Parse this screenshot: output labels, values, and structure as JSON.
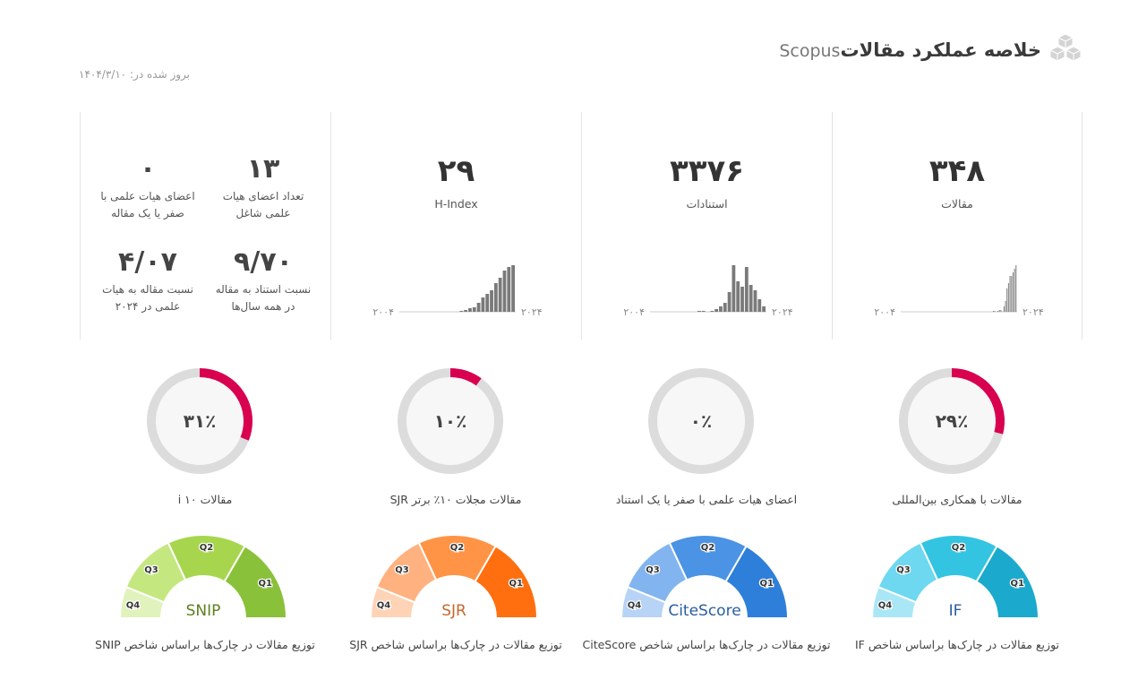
{
  "header": {
    "title": "خلاصه عملکرد مقالات",
    "brand": "Scopus",
    "icon": "cubes-icon",
    "updated": "بروز شده در: ۱۴۰۴/۳/۱۰"
  },
  "stats": {
    "articles": {
      "value": "۳۴۸",
      "label": "مقالات",
      "axis_start": "۲۰۰۴",
      "axis_end": "۲۰۲۴",
      "bars": [
        0,
        0,
        0,
        0,
        0,
        0,
        0,
        0,
        0,
        0,
        0,
        0,
        0,
        0,
        0,
        0,
        0,
        0,
        0,
        0,
        0,
        0,
        0,
        0,
        0,
        0,
        0,
        0,
        0,
        0,
        0,
        0,
        0,
        0,
        0,
        0,
        0,
        0,
        0,
        0,
        0,
        0,
        0,
        0,
        0,
        0,
        0,
        0,
        0,
        0,
        0,
        0,
        0,
        0,
        0,
        0,
        0,
        0,
        0,
        0,
        0,
        1,
        1,
        0,
        1,
        2,
        2,
        0,
        6,
        12,
        26,
        32,
        40,
        40,
        44,
        48,
        52
      ]
    },
    "citations": {
      "value": "۳۳۷۶",
      "label": "استنادات",
      "axis_start": "۲۰۰۴",
      "axis_end": "۲۰۲۴",
      "bars": [
        0,
        0,
        0,
        0,
        0,
        0,
        0,
        0,
        0,
        0,
        0,
        1,
        1,
        0,
        1,
        3,
        6,
        10,
        22,
        52,
        34,
        28,
        50,
        30,
        24,
        14,
        6
      ]
    },
    "hindex": {
      "value": "۲۹",
      "label": "H-Index",
      "axis_start": "۲۰۰۴",
      "axis_end": "۲۰۲۴",
      "bars": [
        0,
        0,
        0,
        0,
        0,
        0,
        0,
        0,
        0,
        0,
        0,
        0,
        0,
        0,
        1,
        2,
        4,
        5,
        10,
        16,
        20,
        24,
        32,
        38,
        46,
        50,
        52
      ]
    },
    "faculty": {
      "active": {
        "value": "۱۳",
        "label1": "تعداد اعضای هیات",
        "label2": "علمی شاغل"
      },
      "zero": {
        "value": "۰",
        "label1": "اعضای هیات علمی با",
        "label2": "صفر یا یک مقاله"
      },
      "cite_ratio": {
        "value": "۹/۷۰",
        "label1": "نسبت استناد به مقاله",
        "label2": "در همه سال‌ها"
      },
      "art_ratio": {
        "value": "۴/۰۷",
        "label1": "نسبت مقاله به هیات",
        "label2": "علمی در ۲۰۲۴"
      }
    }
  },
  "donuts": [
    {
      "text": "۲۹٪",
      "percent": 0.29,
      "caption": "مقالات با همکاری بین‌المللی"
    },
    {
      "text": "۰٪",
      "percent": 0,
      "caption": "اعضای هیات علمی با صفر یا یک استناد"
    },
    {
      "text": "۱۰٪",
      "percent": 0.1,
      "caption": "مقالات مجلات ۱۰٪ برتر SJR"
    },
    {
      "text": "۳۱٪",
      "percent": 0.31,
      "caption": "مقالات ۱۰ i"
    }
  ],
  "donut_color": "#d8004f",
  "gauges": [
    {
      "name": "IF",
      "caption": "توزیع مقالات در چارک‌ها براساس شاخص IF",
      "label_color": "#2a5ea0",
      "colors": [
        "#1ba9cd",
        "#33c4e2",
        "#6dd8ef",
        "#a9e7f6"
      ]
    },
    {
      "name": "CiteScore",
      "caption": "توزیع مقالات در چارک‌ها براساس شاخص CiteScore",
      "label_color": "#2a5ea0",
      "colors": [
        "#2e7fd9",
        "#4b93e4",
        "#82b5ef",
        "#b7d3f5"
      ]
    },
    {
      "name": "SJR",
      "caption": "توزیع مقالات در چارک‌ها براساس شاخص SJR",
      "label_color": "#c9662a",
      "colors": [
        "#ff6f0f",
        "#ff9446",
        "#ffb27f",
        "#ffd3b6"
      ]
    },
    {
      "name": "SNIP",
      "caption": "توزیع مقالات در چارک‌ها براساس شاخص SNIP",
      "label_color": "#5d7f1e",
      "colors": [
        "#8ac13a",
        "#a7d64e",
        "#c5e780",
        "#e0f3bc"
      ]
    }
  ],
  "quartiles": [
    "Q1",
    "Q2",
    "Q3",
    "Q4"
  ]
}
